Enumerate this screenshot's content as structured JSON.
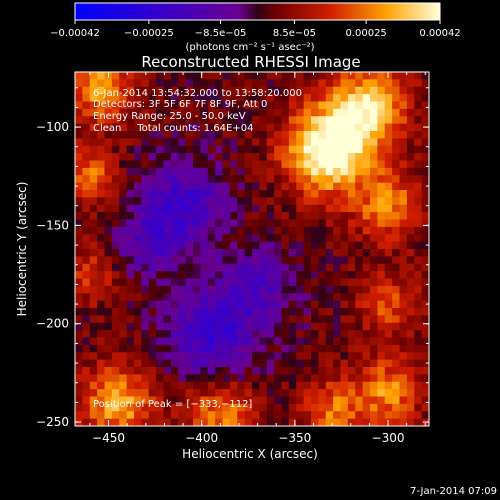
{
  "chart_data": {
    "type": "heatmap",
    "title": "Reconstructed RHESSI Image",
    "xlabel": "Heliocentric X (arcsec)",
    "ylabel": "Heliocentric Y (arcsec)",
    "xlim": [
      -468,
      -278
    ],
    "ylim": [
      -252,
      -72
    ],
    "x_ticks": [
      -450,
      -400,
      -350,
      -300
    ],
    "y_ticks": [
      -250,
      -200,
      -150,
      -100
    ],
    "x_tick_labels": [
      "−450",
      "−400",
      "−350",
      "−300"
    ],
    "y_tick_labels": [
      "−250",
      "−200",
      "−150",
      "−100"
    ],
    "colorbar": {
      "range": [
        -0.00042,
        0.00042
      ],
      "ticks": [
        -0.00042,
        -0.00025,
        -8.5e-05,
        8.5e-05,
        0.00025,
        0.00042
      ],
      "tick_labels": [
        "−0.00042",
        "−0.00025",
        "−8.5e−05",
        "8.5e−05",
        "0.00025",
        "0.00042"
      ],
      "unit_label": "(photons cm⁻² s⁻¹ asec⁻²)"
    },
    "annotations": [
      "6-Jan-2014 13:54:32.000 to 13:58:20.000",
      "Detectors: 3F 5F 6F 7F 8F 9F, Att 0",
      "Energy Range: 25.0 - 50.0 keV",
      "Clean     Total counts: 1.64E+04",
      "Position of Peak = [−333,−112]"
    ],
    "peak": [
      -333,
      -112
    ],
    "peak_value": 0.00042,
    "timestamp": "7-Jan-2014 07:09"
  }
}
